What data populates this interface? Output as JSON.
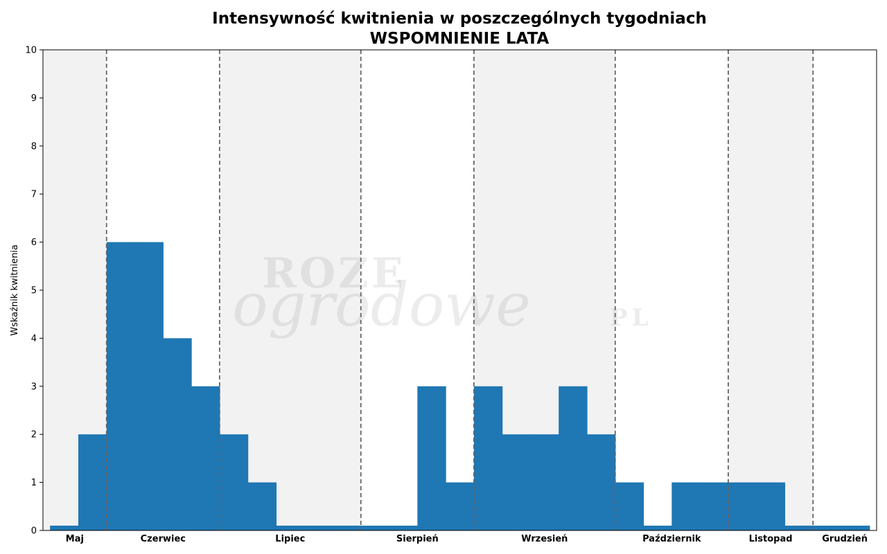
{
  "chart_data": {
    "type": "bar",
    "title": "Intensywność kwitnienia w poszczególnych tygodniach",
    "subtitle": "WSPOMNIENIE LATA",
    "ylabel": "Wskaźnik kwitnienia",
    "xlabel": "",
    "ylim": [
      0,
      10
    ],
    "yticks": [
      0,
      1,
      2,
      3,
      4,
      5,
      6,
      7,
      8,
      9,
      10
    ],
    "grid": false,
    "weeks_range": [
      0,
      29.5
    ],
    "values": [
      0.1,
      2,
      6,
      6,
      4,
      3,
      2,
      1,
      0.1,
      0.1,
      0.1,
      0.1,
      0.1,
      3,
      1,
      3,
      2,
      2,
      3,
      2,
      1,
      0.1,
      1,
      1,
      1,
      1,
      0.1,
      0.1,
      0.1
    ],
    "month_boundaries": [
      2.25,
      6.25,
      11.25,
      15.25,
      20.25,
      24.25,
      27.25
    ],
    "months": [
      {
        "label": "Maj",
        "start": 0,
        "end": 2.25,
        "shaded": true
      },
      {
        "label": "Czerwiec",
        "start": 2.25,
        "end": 6.25,
        "shaded": false
      },
      {
        "label": "Lipiec",
        "start": 6.25,
        "end": 11.25,
        "shaded": true
      },
      {
        "label": "Sierpień",
        "start": 11.25,
        "end": 15.25,
        "shaded": false
      },
      {
        "label": "Wrzesień",
        "start": 15.25,
        "end": 20.25,
        "shaded": true
      },
      {
        "label": "Październik",
        "start": 20.25,
        "end": 24.25,
        "shaded": false
      },
      {
        "label": "Listopad",
        "start": 24.25,
        "end": 27.25,
        "shaded": true
      },
      {
        "label": "Grudzień",
        "start": 27.25,
        "end": 29.5,
        "shaded": false
      }
    ],
    "colors": {
      "bar": "#1f77b4",
      "shade": "#f2f2f2",
      "boundary": "#666666"
    }
  },
  "watermark": {
    "line1": "ROZE",
    "line2": "ogrodowe",
    "line3": "PL"
  }
}
